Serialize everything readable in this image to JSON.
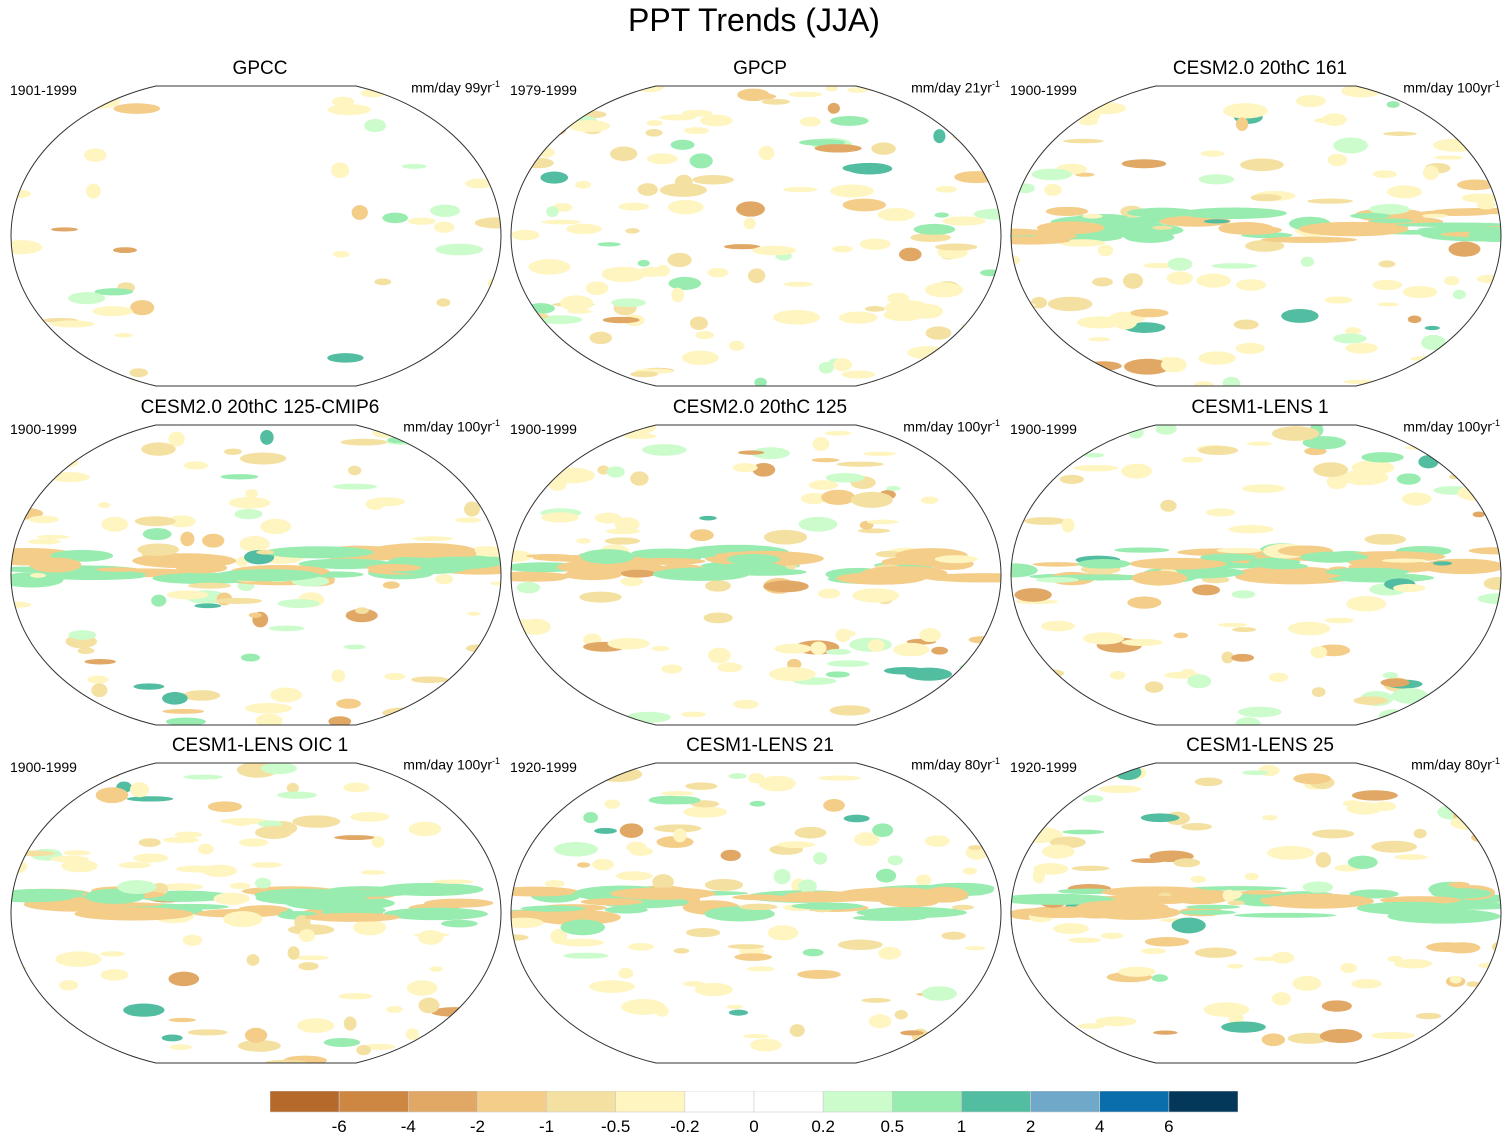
{
  "title": "PPT Trends (JJA)",
  "panels": [
    {
      "title": "GPCC",
      "period": "1901-1999",
      "units": "mm/day 99yr",
      "units_exp": "-1"
    },
    {
      "title": "GPCP",
      "period": "1979-1999",
      "units": "mm/day 21yr",
      "units_exp": "-1"
    },
    {
      "title": "CESM2.0 20thC 161",
      "period": "1900-1999",
      "units": "mm/day 100yr",
      "units_exp": "-1"
    },
    {
      "title": "CESM2.0 20thC 125-CMIP6",
      "period": "1900-1999",
      "units": "mm/day 100yr",
      "units_exp": "-1"
    },
    {
      "title": "CESM2.0 20thC 125",
      "period": "1900-1999",
      "units": "mm/day 100yr",
      "units_exp": "-1"
    },
    {
      "title": "CESM1-LENS 1",
      "period": "1900-1999",
      "units": "mm/day 100yr",
      "units_exp": "-1"
    },
    {
      "title": "CESM1-LENS OIC 1",
      "period": "1900-1999",
      "units": "mm/day 100yr",
      "units_exp": "-1"
    },
    {
      "title": "CESM1-LENS 21",
      "period": "1920-1999",
      "units": "mm/day 80yr",
      "units_exp": "-1"
    },
    {
      "title": "CESM1-LENS 25",
      "period": "1920-1999",
      "units": "mm/day 80yr",
      "units_exp": "-1"
    }
  ],
  "colorbar": {
    "labels": [
      "-6",
      "-4",
      "-2",
      "-1",
      "-0.5",
      "-0.2",
      "0",
      "0.2",
      "0.5",
      "1",
      "2",
      "4",
      "6"
    ],
    "colors": [
      "#b5692a",
      "#cd8743",
      "#e0a765",
      "#f4cd89",
      "#f4e1a2",
      "#fff5c0",
      "#ffffff",
      "#ffffff",
      "#ccfccc",
      "#98ecb0",
      "#52bda0",
      "#6fa8c8",
      "#0a6dac",
      "#04385a"
    ]
  }
}
